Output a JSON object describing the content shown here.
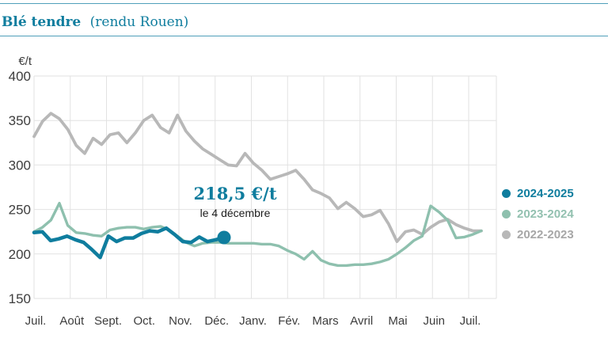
{
  "header": {
    "title_bold": "Blé tendre",
    "title_regular": "(rendu Rouen)"
  },
  "chart_data": {
    "type": "line",
    "title": "Blé tendre (rendu Rouen)",
    "unit_label": "€/t",
    "grid": true,
    "legend_position": "right",
    "y_axis": {
      "min": 150,
      "max": 400,
      "tick_step": 50,
      "tick_labels": [
        "400",
        "350",
        "300",
        "250",
        "200",
        "150"
      ]
    },
    "x_axis": {
      "tick_labels": [
        "Juil.",
        "Août",
        "Sept.",
        "Oct.",
        "Nov.",
        "Déc.",
        "Janv.",
        "Fév.",
        "Mars",
        "Avril",
        "Mai",
        "Juin",
        "Juil."
      ]
    },
    "series": [
      {
        "name": "2024-2025",
        "color": "#0f7d9e",
        "text_color": "#0f7d9e",
        "line_width": 4.5,
        "end_marker": true,
        "values": [
          224,
          225,
          215,
          217,
          220,
          216,
          213,
          205,
          196,
          220,
          214,
          218,
          218,
          223,
          226,
          225,
          229,
          222,
          214,
          213,
          219,
          214,
          216,
          218.5
        ]
      },
      {
        "name": "2023-2024",
        "color": "#8ec0ae",
        "text_color": "#93c1b0",
        "line_width": 3.4,
        "end_marker": false,
        "values": [
          225,
          230,
          238,
          257,
          232,
          224,
          223,
          221,
          220,
          227,
          229,
          230,
          230,
          228,
          230,
          231,
          227,
          220,
          213,
          209,
          212,
          213,
          213,
          212,
          212,
          212,
          212,
          211,
          211,
          209,
          204,
          200,
          194,
          203,
          193,
          189,
          187,
          187,
          188,
          188,
          189,
          191,
          194,
          200,
          207,
          215,
          220,
          254,
          247,
          238,
          218,
          219,
          222,
          226
        ]
      },
      {
        "name": "2022-2023",
        "color": "#b8b8b8",
        "text_color": "#a7a7a7",
        "line_width": 3.8,
        "end_marker": false,
        "values": [
          332,
          349,
          358,
          352,
          340,
          322,
          313,
          330,
          323,
          334,
          336,
          325,
          336,
          350,
          356,
          342,
          336,
          356,
          338,
          327,
          318,
          312,
          306,
          300,
          299,
          313,
          302,
          294,
          284,
          287,
          290,
          294,
          284,
          272,
          268,
          263,
          251,
          258,
          251,
          242,
          244,
          249,
          234,
          214,
          225,
          227,
          222,
          230,
          236,
          239,
          233,
          229,
          226,
          226
        ]
      }
    ],
    "annotation": {
      "value": 218.5,
      "value_label": "218,5 €/t",
      "date_label": "le 4 décembre"
    }
  }
}
